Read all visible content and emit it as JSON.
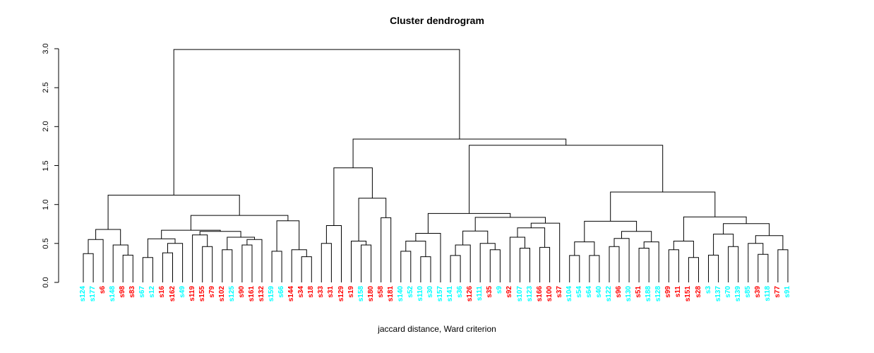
{
  "chart_data": {
    "type": "dendrogram",
    "title": "Cluster dendrogram",
    "xlabel": "jaccard distance, Ward criterion",
    "ylabel": "",
    "ylim": [
      0,
      3
    ],
    "yticks": [
      "0.0",
      "0.5",
      "1.0",
      "1.5",
      "2.0",
      "2.5",
      "3.0"
    ],
    "grid": false,
    "legend": "none",
    "colors": {
      "cyan": "#00ffff",
      "red": "#ff0000",
      "line": "#000000"
    },
    "leaf_colors": {
      "s124": "cyan",
      "s177": "cyan",
      "s6": "red",
      "s148": "cyan",
      "s98": "red",
      "s83": "red",
      "s67": "cyan",
      "s12": "cyan",
      "s16": "red",
      "s162": "red",
      "s49": "cyan",
      "s119": "red",
      "s155": "red",
      "s79": "red",
      "s102": "red",
      "s125": "cyan",
      "s90": "red",
      "s161": "red",
      "s132": "red",
      "s159": "cyan",
      "s66": "cyan",
      "s144": "red",
      "s34": "red",
      "s18": "red",
      "s33": "red",
      "s31": "red",
      "s129": "red",
      "s19": "red",
      "s158": "cyan",
      "s180": "red",
      "s58": "red",
      "s181": "red",
      "s140": "cyan",
      "s52": "cyan",
      "s110": "cyan",
      "s30": "cyan",
      "s157": "cyan",
      "s141": "cyan",
      "s36": "cyan",
      "s126": "red",
      "s111": "cyan",
      "s35": "red",
      "s9": "cyan",
      "s92": "red",
      "s107": "cyan",
      "s123": "cyan",
      "s166": "red",
      "s100": "red",
      "s37": "red",
      "s104": "cyan",
      "s54": "cyan",
      "s64": "cyan",
      "s40": "cyan",
      "s122": "cyan",
      "s96": "red",
      "s130": "cyan",
      "s51": "red",
      "s188": "cyan",
      "s128": "cyan",
      "s99": "red",
      "s11": "red",
      "s151": "red",
      "s28": "red",
      "s3": "cyan",
      "s137": "cyan",
      "s70": "cyan",
      "s139": "cyan",
      "s85": "cyan",
      "s39": "red",
      "s118": "cyan",
      "s77": "red",
      "s91": "cyan"
    },
    "tree": {
      "h": 2.99,
      "c": [
        {
          "h": 1.12,
          "c": [
            {
              "h": 0.68,
              "c": [
                {
                  "h": 0.55,
                  "c": [
                    {
                      "h": 0.37,
                      "c": [
                        "s124",
                        "s177"
                      ]
                    },
                    "s6"
                  ]
                },
                {
                  "h": 0.48,
                  "c": [
                    "s148",
                    {
                      "h": 0.35,
                      "c": [
                        "s98",
                        "s83"
                      ]
                    }
                  ]
                }
              ]
            },
            {
              "h": 0.86,
              "c": [
                {
                  "h": 0.67,
                  "c": [
                    {
                      "h": 0.56,
                      "c": [
                        {
                          "h": 0.32,
                          "c": [
                            "s67",
                            "s12"
                          ]
                        },
                        {
                          "h": 0.5,
                          "c": [
                            {
                              "h": 0.38,
                              "c": [
                                "s16",
                                "s162"
                              ]
                            },
                            "s49"
                          ]
                        }
                      ]
                    },
                    {
                      "h": 0.655,
                      "c": [
                        {
                          "h": 0.61,
                          "c": [
                            "s119",
                            {
                              "h": 0.46,
                              "c": [
                                "s155",
                                "s79"
                              ]
                            }
                          ]
                        },
                        {
                          "h": 0.58,
                          "c": [
                            {
                              "h": 0.42,
                              "c": [
                                "s102",
                                "s125"
                              ]
                            },
                            {
                              "h": 0.55,
                              "c": [
                                {
                                  "h": 0.48,
                                  "c": [
                                    "s90",
                                    "s161"
                                  ]
                                },
                                "s132"
                              ]
                            }
                          ]
                        }
                      ]
                    }
                  ]
                },
                {
                  "h": 0.79,
                  "c": [
                    {
                      "h": 0.4,
                      "c": [
                        "s159",
                        "s66"
                      ]
                    },
                    {
                      "h": 0.42,
                      "c": [
                        "s144",
                        {
                          "h": 0.33,
                          "c": [
                            "s34",
                            "s18"
                          ]
                        }
                      ]
                    }
                  ]
                }
              ]
            }
          ]
        },
        {
          "h": 1.84,
          "c": [
            {
              "h": 1.47,
              "c": [
                {
                  "h": 0.73,
                  "c": [
                    {
                      "h": 0.5,
                      "c": [
                        "s33",
                        "s31"
                      ]
                    },
                    "s129"
                  ]
                },
                {
                  "h": 1.08,
                  "c": [
                    {
                      "h": 0.53,
                      "c": [
                        "s19",
                        {
                          "h": 0.48,
                          "c": [
                            "s158",
                            "s180"
                          ]
                        }
                      ]
                    },
                    {
                      "h": 0.83,
                      "c": [
                        "s58",
                        "s181"
                      ]
                    }
                  ]
                }
              ]
            },
            {
              "h": 1.76,
              "c": [
                {
                  "h": 0.885,
                  "c": [
                    {
                      "h": 0.63,
                      "c": [
                        {
                          "h": 0.53,
                          "c": [
                            {
                              "h": 0.4,
                              "c": [
                                "s140",
                                "s52"
                              ]
                            },
                            {
                              "h": 0.33,
                              "c": [
                                "s110",
                                "s30"
                              ]
                            }
                          ]
                        },
                        "s157"
                      ]
                    },
                    {
                      "h": 0.835,
                      "c": [
                        {
                          "h": 0.66,
                          "c": [
                            {
                              "h": 0.48,
                              "c": [
                                {
                                  "h": 0.345,
                                  "c": [
                                    "s141",
                                    "s36"
                                  ]
                                },
                                "s126"
                              ]
                            },
                            {
                              "h": 0.5,
                              "c": [
                                "s111",
                                {
                                  "h": 0.42,
                                  "c": [
                                    "s35",
                                    "s9"
                                  ]
                                }
                              ]
                            }
                          ]
                        },
                        {
                          "h": 0.76,
                          "c": [
                            {
                              "h": 0.7,
                              "c": [
                                {
                                  "h": 0.58,
                                  "c": [
                                    "s92",
                                    {
                                      "h": 0.44,
                                      "c": [
                                        "s107",
                                        "s123"
                                      ]
                                    }
                                  ]
                                },
                                {
                                  "h": 0.45,
                                  "c": [
                                    "s166",
                                    "s100"
                                  ]
                                }
                              ]
                            },
                            "s37"
                          ]
                        }
                      ]
                    }
                  ]
                },
                {
                  "h": 1.16,
                  "c": [
                    {
                      "h": 0.785,
                      "c": [
                        {
                          "h": 0.52,
                          "c": [
                            {
                              "h": 0.345,
                              "c": [
                                "s104",
                                "s54"
                              ]
                            },
                            {
                              "h": 0.345,
                              "c": [
                                "s64",
                                "s40"
                              ]
                            }
                          ]
                        },
                        {
                          "h": 0.655,
                          "c": [
                            {
                              "h": 0.565,
                              "c": [
                                {
                                  "h": 0.46,
                                  "c": [
                                    "s122",
                                    "s96"
                                  ]
                                },
                                "s130"
                              ]
                            },
                            {
                              "h": 0.52,
                              "c": [
                                {
                                  "h": 0.44,
                                  "c": [
                                    "s51",
                                    "s188"
                                  ]
                                },
                                "s128"
                              ]
                            }
                          ]
                        }
                      ]
                    },
                    {
                      "h": 0.84,
                      "c": [
                        {
                          "h": 0.53,
                          "c": [
                            {
                              "h": 0.42,
                              "c": [
                                "s99",
                                "s11"
                              ]
                            },
                            {
                              "h": 0.32,
                              "c": [
                                "s151",
                                "s28"
                              ]
                            }
                          ]
                        },
                        {
                          "h": 0.755,
                          "c": [
                            {
                              "h": 0.62,
                              "c": [
                                {
                                  "h": 0.35,
                                  "c": [
                                    "s3",
                                    "s137"
                                  ]
                                },
                                {
                                  "h": 0.46,
                                  "c": [
                                    "s70",
                                    "s139"
                                  ]
                                }
                              ]
                            },
                            {
                              "h": 0.6,
                              "c": [
                                {
                                  "h": 0.5,
                                  "c": [
                                    "s85",
                                    {
                                      "h": 0.36,
                                      "c": [
                                        "s39",
                                        "s118"
                                      ]
                                    }
                                  ]
                                },
                                {
                                  "h": 0.42,
                                  "c": [
                                    "s77",
                                    "s91"
                                  ]
                                }
                              ]
                            }
                          ]
                        }
                      ]
                    }
                  ]
                }
              ]
            }
          ]
        }
      ]
    }
  }
}
